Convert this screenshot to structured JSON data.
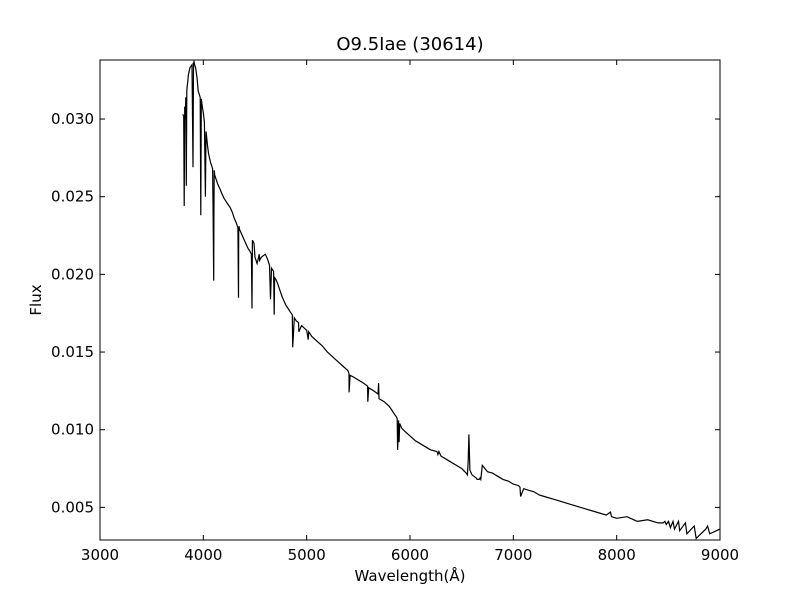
{
  "chart_data": {
    "type": "line",
    "title": "O9.5Iae (30614)",
    "xlabel": "Wavelength(Å)",
    "ylabel": "Flux",
    "xlim": [
      3000,
      9000
    ],
    "ylim": [
      0.0029,
      0.0338
    ],
    "grid": false,
    "legend": "none",
    "x_ticks": [
      3000,
      4000,
      5000,
      6000,
      7000,
      8000,
      9000
    ],
    "x_tick_labels": [
      "3000",
      "4000",
      "5000",
      "6000",
      "7000",
      "8000",
      "9000"
    ],
    "y_ticks": [
      0.005,
      0.01,
      0.015,
      0.02,
      0.025,
      0.03
    ],
    "y_tick_labels": [
      "0.005",
      "0.010",
      "0.015",
      "0.020",
      "0.025",
      "0.030"
    ],
    "series": [
      {
        "color": "#000000",
        "x": [
          3800,
          3810,
          3815,
          3820,
          3825,
          3830,
          3835,
          3840,
          3845,
          3850,
          3855,
          3860,
          3870,
          3880,
          3890,
          3900,
          3905,
          3910,
          3915,
          3920,
          3925,
          3930,
          3940,
          3950,
          3960,
          3970,
          3975,
          3980,
          3990,
          4000,
          4010,
          4020,
          4026,
          4030,
          4040,
          4050,
          4060,
          4070,
          4080,
          4090,
          4095,
          4100,
          4102,
          4105,
          4110,
          4120,
          4140,
          4160,
          4180,
          4200,
          4220,
          4240,
          4260,
          4280,
          4300,
          4320,
          4335,
          4340,
          4342,
          4345,
          4350,
          4370,
          4390,
          4410,
          4430,
          4450,
          4465,
          4471,
          4475,
          4490,
          4500,
          4520,
          4541,
          4545,
          4560,
          4580,
          4600,
          4620,
          4640,
          4650,
          4660,
          4680,
          4686,
          4690,
          4700,
          4720,
          4740,
          4760,
          4780,
          4800,
          4820,
          4840,
          4861,
          4865,
          4880,
          4900,
          4921,
          4925,
          4950,
          5000,
          5015,
          5020,
          5050,
          5100,
          5150,
          5200,
          5250,
          5300,
          5350,
          5400,
          5410,
          5411,
          5420,
          5450,
          5500,
          5550,
          5590,
          5592,
          5600,
          5650,
          5690,
          5696,
          5700,
          5750,
          5800,
          5820,
          5850,
          5870,
          5876,
          5880,
          5885,
          5890,
          5895,
          5900,
          5920,
          5950,
          6000,
          6050,
          6100,
          6150,
          6200,
          6260,
          6270,
          6280,
          6300,
          6350,
          6400,
          6450,
          6500,
          6530,
          6545,
          6555,
          6563,
          6570,
          6580,
          6600,
          6640,
          6650,
          6670,
          6678,
          6685,
          6700,
          6750,
          6800,
          6850,
          6900,
          6950,
          7000,
          7050,
          7065,
          7070,
          7100,
          7150,
          7200,
          7250,
          7300,
          7400,
          7500,
          7600,
          7700,
          7800,
          7900,
          7940,
          7950,
          8000,
          8100,
          8200,
          8300,
          8400,
          8450,
          8467,
          8480,
          8502,
          8520,
          8545,
          8560,
          8598,
          8610,
          8665,
          8680,
          8750,
          8770,
          8863,
          8880,
          8900,
          9000
        ],
        "y": [
          0.0303,
          0.0302,
          0.0244,
          0.0308,
          0.03,
          0.0314,
          0.0257,
          0.0318,
          0.0322,
          0.0324,
          0.0328,
          0.033,
          0.0333,
          0.0334,
          0.0335,
          0.0269,
          0.0336,
          0.0337,
          0.0335,
          0.0334,
          0.0333,
          0.0331,
          0.0326,
          0.0318,
          0.0316,
          0.0314,
          0.0238,
          0.0313,
          0.0308,
          0.0304,
          0.0298,
          0.025,
          0.0292,
          0.029,
          0.0283,
          0.0278,
          0.0275,
          0.0272,
          0.027,
          0.0268,
          0.024,
          0.0196,
          0.0234,
          0.0267,
          0.0264,
          0.0262,
          0.0258,
          0.0255,
          0.0252,
          0.0249,
          0.0247,
          0.0245,
          0.0243,
          0.024,
          0.0236,
          0.0233,
          0.023,
          0.0185,
          0.0228,
          0.0231,
          0.0229,
          0.0226,
          0.0223,
          0.022,
          0.0217,
          0.0215,
          0.0213,
          0.0178,
          0.0222,
          0.022,
          0.0211,
          0.0207,
          0.0213,
          0.0209,
          0.0211,
          0.0212,
          0.0213,
          0.021,
          0.0206,
          0.0184,
          0.0204,
          0.0202,
          0.0174,
          0.0198,
          0.0197,
          0.0194,
          0.019,
          0.0186,
          0.0183,
          0.018,
          0.0178,
          0.0176,
          0.0174,
          0.0153,
          0.0172,
          0.017,
          0.0169,
          0.0163,
          0.0167,
          0.0164,
          0.0158,
          0.0163,
          0.016,
          0.0157,
          0.0154,
          0.015,
          0.0147,
          0.0144,
          0.0141,
          0.0138,
          0.0136,
          0.0124,
          0.0135,
          0.0134,
          0.0132,
          0.013,
          0.0128,
          0.0118,
          0.0127,
          0.0125,
          0.0123,
          0.013,
          0.012,
          0.0118,
          0.0115,
          0.0113,
          0.011,
          0.0108,
          0.0107,
          0.0087,
          0.0096,
          0.0106,
          0.0092,
          0.0104,
          0.0101,
          0.0099,
          0.0096,
          0.0093,
          0.0091,
          0.0089,
          0.0087,
          0.0086,
          0.0084,
          0.0086,
          0.0083,
          0.0081,
          0.0079,
          0.0077,
          0.0075,
          0.0073,
          0.0072,
          0.0071,
          0.008,
          0.0097,
          0.0074,
          0.0071,
          0.0069,
          0.0068,
          0.0068,
          0.0069,
          0.0068,
          0.0077,
          0.0073,
          0.0072,
          0.007,
          0.0068,
          0.0067,
          0.0065,
          0.0064,
          0.0063,
          0.0057,
          0.0062,
          0.0061,
          0.006,
          0.0058,
          0.0057,
          0.0055,
          0.0053,
          0.0051,
          0.0049,
          0.0047,
          0.0045,
          0.0047,
          0.0044,
          0.0043,
          0.0044,
          0.0041,
          0.0042,
          0.004,
          0.004,
          0.0041,
          0.0039,
          0.0041,
          0.0037,
          0.0041,
          0.0036,
          0.0041,
          0.0035,
          0.004,
          0.0033,
          0.0038,
          0.003,
          0.0036,
          0.0038,
          0.0033,
          0.0036
        ]
      }
    ]
  }
}
